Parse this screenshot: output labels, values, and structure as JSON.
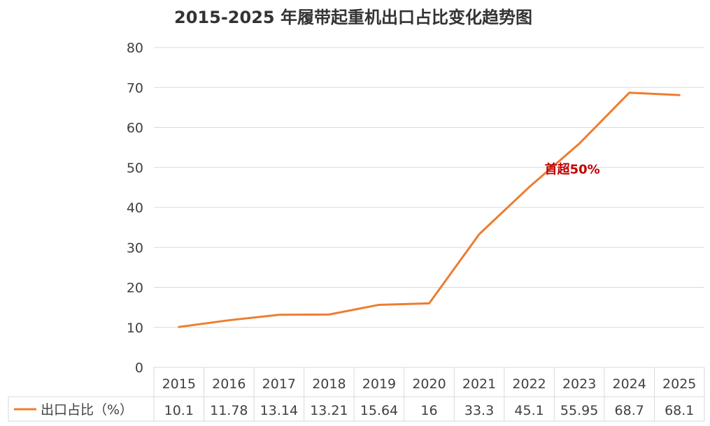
{
  "chart_data": {
    "type": "line",
    "title": "2015-2025 年履带起重机出口占比变化趋势图",
    "categories": [
      "2015",
      "2016",
      "2017",
      "2018",
      "2019",
      "2020",
      "2021",
      "2022",
      "2023",
      "2024",
      "2025"
    ],
    "series": [
      {
        "name": "出口占比（%）",
        "values": [
          10.1,
          11.78,
          13.14,
          13.21,
          15.64,
          16,
          33.3,
          45.1,
          55.95,
          68.7,
          68.1
        ],
        "color": "#ED7D31"
      }
    ],
    "value_labels": [
      "10.1",
      "11.78",
      "13.14",
      "13.21",
      "15.64",
      "16",
      "33.3",
      "45.1",
      "55.95",
      "68.7",
      "68.1"
    ],
    "ylim": [
      0,
      80
    ],
    "yticks": [
      0,
      10,
      20,
      30,
      40,
      50,
      60,
      70,
      80
    ],
    "grid": true,
    "data_table": true,
    "annotations": [
      {
        "text": "首超50%",
        "category": "2023",
        "color": "#C00000"
      }
    ]
  }
}
